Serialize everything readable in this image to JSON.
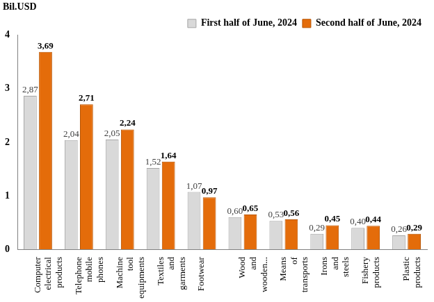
{
  "chart_data": {
    "type": "bar",
    "ylabel": "Bil.USD",
    "categories": [
      "Computer electrical products",
      "Telephone mobile phones",
      "Machine tool equipments",
      "Textiles and garments",
      "Footwear",
      "Wood and wooden...",
      "Means of transports",
      "Irons and steels",
      "Fishery products",
      "Plastic products"
    ],
    "series": [
      {
        "name": "First half of June, 2024",
        "color": "#d9d9d9",
        "values": [
          2.87,
          2.04,
          2.05,
          1.52,
          1.07,
          0.6,
          0.53,
          0.29,
          0.4,
          0.26
        ],
        "value_labels": [
          "2,87",
          "2,04",
          "2,05",
          "1,52",
          "1,07",
          "0,60",
          "0,53",
          "0,29",
          "0,40",
          "0,26"
        ]
      },
      {
        "name": "Second half of June, 2024",
        "color": "#e46c0a",
        "values": [
          3.69,
          2.71,
          2.24,
          1.64,
          0.97,
          0.65,
          0.56,
          0.45,
          0.44,
          0.29
        ],
        "value_labels": [
          "3,69",
          "2,71",
          "2,24",
          "1,64",
          "0,97",
          "0,65",
          "0,56",
          "0,45",
          "0,44",
          "0,29"
        ]
      }
    ],
    "ylim": [
      0,
      4
    ],
    "yticks": [
      0,
      1,
      2,
      3,
      4
    ],
    "grid": false,
    "legend": "upper right",
    "data_labels": true
  }
}
